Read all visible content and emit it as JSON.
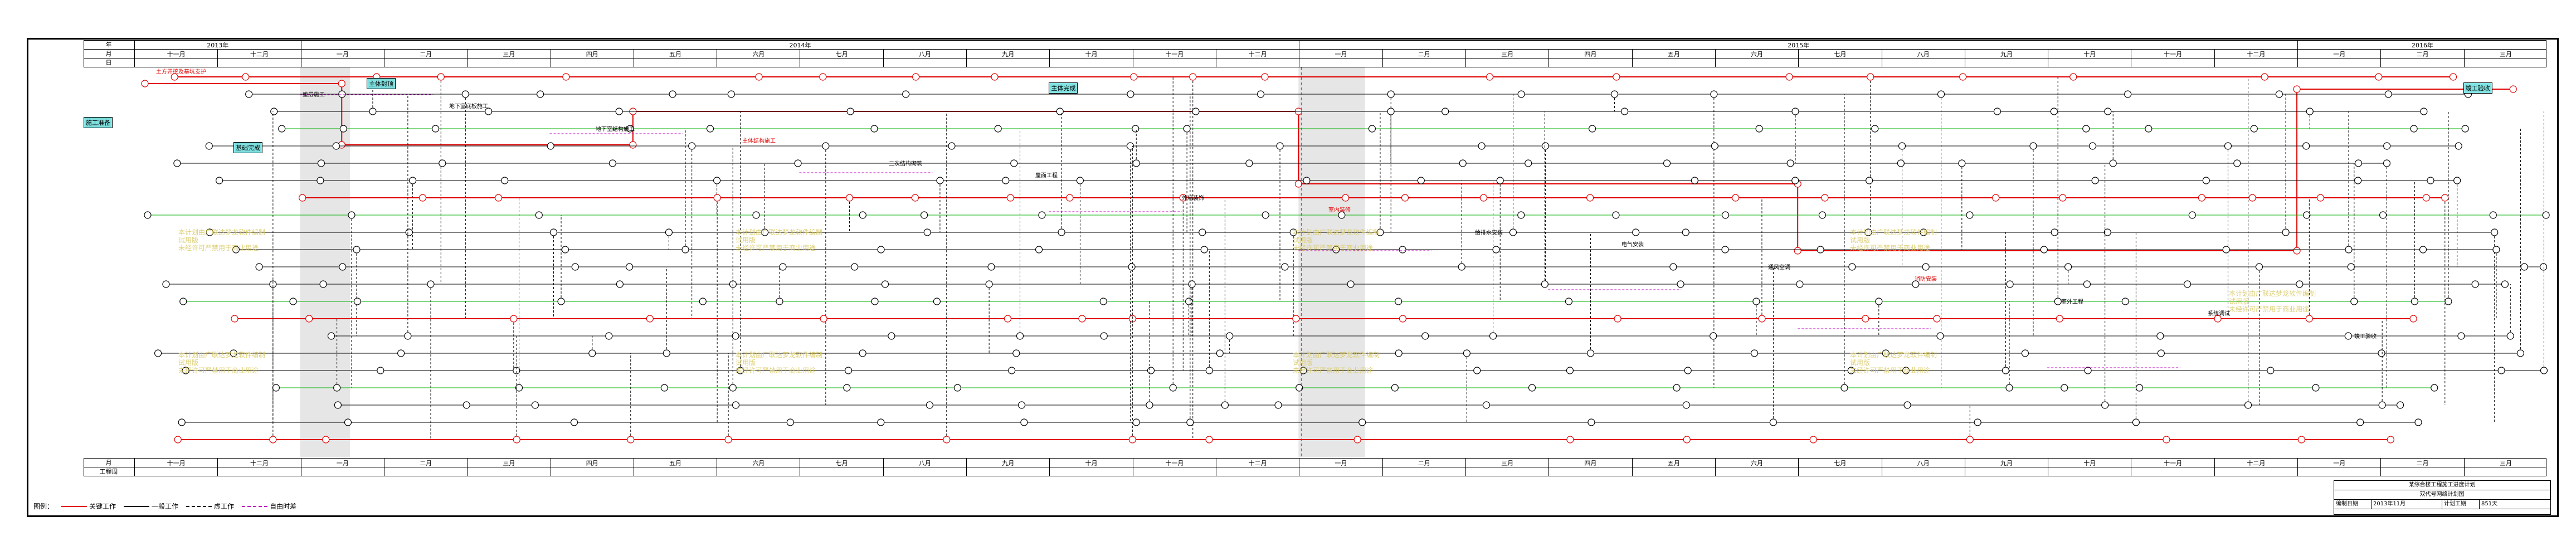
{
  "years": [
    {
      "label": "2013年"
    },
    {
      "label": "2014年"
    },
    {
      "label": "2015年"
    },
    {
      "label": "2016年"
    }
  ],
  "months_top": [
    "十一月",
    "十二月",
    "一月",
    "二月",
    "三月",
    "四月",
    "五月",
    "六月",
    "七月",
    "八月",
    "九月",
    "十月",
    "十一月",
    "十二月",
    "一月",
    "二月",
    "三月",
    "四月",
    "五月",
    "六月",
    "七月",
    "八月",
    "九月",
    "十月",
    "十一月",
    "十二月",
    "一月",
    "二月",
    "三月"
  ],
  "row_labels": {
    "year": "年",
    "month": "月",
    "day": "日",
    "bottom_day": "日",
    "bottom_month": "月",
    "bottom_week": "工程周",
    "schedule": "工期量"
  },
  "milestones": [
    {
      "label": "施工准备"
    },
    {
      "label": "基础完成"
    },
    {
      "label": "主体封顶"
    },
    {
      "label": "主体完成"
    },
    {
      "label": "竣工验收"
    }
  ],
  "tasks": [
    {
      "label": "土方开挖及基坑支护"
    },
    {
      "label": "垫层施工"
    },
    {
      "label": "地下室底板施工"
    },
    {
      "label": "地下室结构施工"
    },
    {
      "label": "主体结构施工"
    },
    {
      "label": "二次结构砌筑"
    },
    {
      "label": "屋面工程"
    },
    {
      "label": "外墙装饰"
    },
    {
      "label": "室内装修"
    },
    {
      "label": "给排水安装"
    },
    {
      "label": "电气安装"
    },
    {
      "label": "通风空调"
    },
    {
      "label": "消防安装"
    },
    {
      "label": "室外工程"
    },
    {
      "label": "系统调试"
    },
    {
      "label": "竣工验收"
    }
  ],
  "watermark": {
    "lines": [
      "本计划由广联达梦龙软件编制",
      "试用版",
      "未经许可严禁用于商业用途"
    ]
  },
  "legend": {
    "title": "图例：",
    "items": [
      {
        "label": "关键工作"
      },
      {
        "label": "一般工作"
      },
      {
        "label": "虚工作"
      },
      {
        "label": "自由时差"
      }
    ]
  },
  "titleblock": {
    "project": "某综合楼工程施工进度计划",
    "sub": "双代号网络计划图",
    "rows": [
      {
        "k": "编制人",
        "v": "",
        "k2": "审核人",
        "v2": ""
      },
      {
        "k": "编制日期",
        "v": "2013年11月",
        "k2": "计划工期",
        "v2": "851天"
      },
      {
        "k": "开工日期",
        "v": "2013年11月",
        "k2": "完工日期",
        "v2": "2016年3月"
      },
      {
        "k": "页码",
        "v": "1/1",
        "k2": "版本",
        "v2": "V1.0"
      }
    ]
  },
  "colors": {
    "critical": "#e00000",
    "normal": "#000000",
    "free": "#c000c0",
    "green": "#00b000",
    "milestone": "#7fe0e0"
  }
}
